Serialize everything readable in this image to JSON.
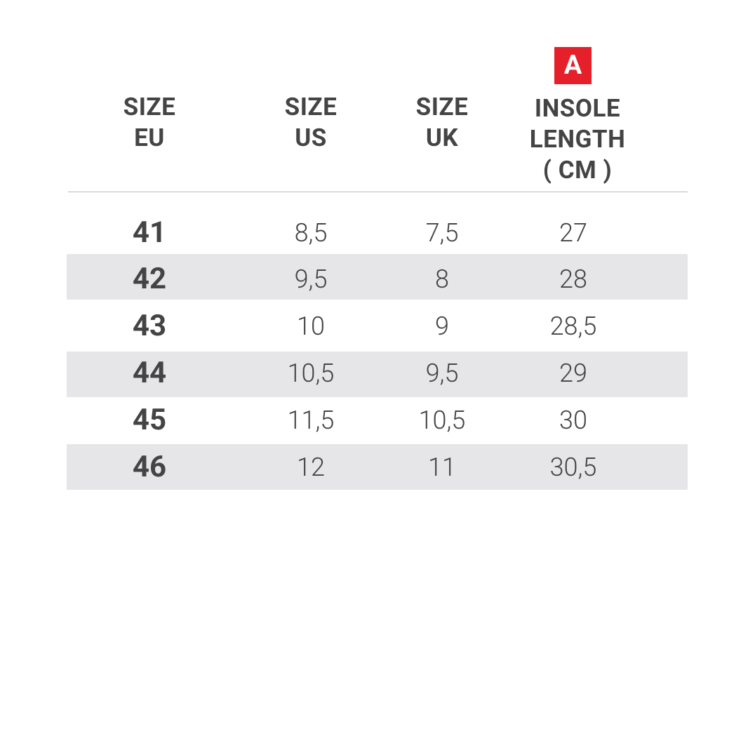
{
  "badge": "A",
  "table": {
    "header": [
      [
        "SIZE",
        "EU"
      ],
      [
        "SIZE",
        "US"
      ],
      [
        "SIZE",
        "UK"
      ],
      [
        "INSOLE",
        "LENGTH",
        "( CM )"
      ]
    ],
    "rows": [
      [
        "41",
        "8,5",
        "7,5",
        "27"
      ],
      [
        "42",
        "9,5",
        "8",
        "28"
      ],
      [
        "43",
        "10",
        "9",
        "28,5"
      ],
      [
        "44",
        "10,5",
        "9,5",
        "29"
      ],
      [
        "45",
        "11,5",
        "10,5",
        "30"
      ],
      [
        "46",
        "12",
        "11",
        "30,5"
      ]
    ]
  }
}
